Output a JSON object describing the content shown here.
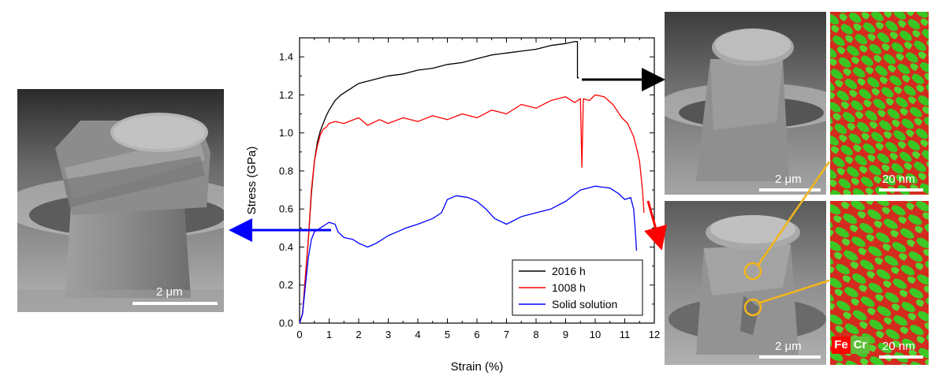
{
  "chart_data": {
    "type": "line",
    "title": "",
    "xlabel": "Strain (%)",
    "ylabel": "Stress (GPa)",
    "xlim": [
      0,
      12
    ],
    "ylim": [
      0,
      1.5
    ],
    "xticks": [
      0,
      1,
      2,
      3,
      4,
      5,
      6,
      7,
      8,
      9,
      10,
      11,
      12
    ],
    "yticks": [
      0.0,
      0.2,
      0.4,
      0.6,
      0.8,
      1.0,
      1.2,
      1.4
    ],
    "xtick_labels": [
      "0",
      "1",
      "2",
      "3",
      "4",
      "5",
      "6",
      "7",
      "8",
      "9",
      "10",
      "11",
      "12"
    ],
    "ytick_labels": [
      "0.0",
      "0.2",
      "0.4",
      "0.6",
      "0.8",
      "1.0",
      "1.2",
      "1.4"
    ],
    "grid": false,
    "legend_position": "bottom-right",
    "series": [
      {
        "name": "2016 h",
        "color": "#000000",
        "x": [
          0,
          0.1,
          0.2,
          0.3,
          0.4,
          0.5,
          0.6,
          0.7,
          0.8,
          0.9,
          1.0,
          1.2,
          1.4,
          1.6,
          1.8,
          2.0,
          2.5,
          3.0,
          3.5,
          4.0,
          4.5,
          5.0,
          5.5,
          6.0,
          6.5,
          7.0,
          7.5,
          8.0,
          8.5,
          9.0,
          9.3,
          9.4,
          9.4,
          9.45
        ],
        "y": [
          0,
          0.05,
          0.25,
          0.45,
          0.68,
          0.85,
          0.95,
          1.01,
          1.05,
          1.09,
          1.12,
          1.17,
          1.2,
          1.22,
          1.24,
          1.26,
          1.28,
          1.3,
          1.31,
          1.33,
          1.34,
          1.36,
          1.37,
          1.39,
          1.41,
          1.42,
          1.43,
          1.44,
          1.46,
          1.47,
          1.48,
          1.48,
          1.29,
          1.29
        ]
      },
      {
        "name": "1008 h",
        "color": "#ff0000",
        "x": [
          0,
          0.1,
          0.2,
          0.3,
          0.4,
          0.5,
          0.6,
          0.7,
          0.8,
          0.9,
          1.0,
          1.2,
          1.5,
          2.0,
          2.3,
          2.7,
          3.0,
          3.5,
          4.0,
          4.5,
          5.0,
          5.5,
          6.0,
          6.5,
          7.0,
          7.5,
          8.0,
          8.5,
          9.0,
          9.3,
          9.5,
          9.55,
          9.6,
          9.8,
          10.0,
          10.3,
          10.6,
          10.9,
          11.1,
          11.3,
          11.4,
          11.5,
          11.6,
          11.65
        ],
        "y": [
          0,
          0.05,
          0.25,
          0.45,
          0.7,
          0.85,
          0.93,
          0.99,
          1.02,
          1.03,
          1.05,
          1.06,
          1.05,
          1.08,
          1.04,
          1.07,
          1.05,
          1.08,
          1.06,
          1.09,
          1.07,
          1.1,
          1.08,
          1.12,
          1.1,
          1.15,
          1.13,
          1.17,
          1.19,
          1.16,
          1.18,
          0.82,
          1.18,
          1.17,
          1.2,
          1.19,
          1.15,
          1.08,
          1.05,
          0.98,
          0.92,
          0.85,
          0.7,
          0.58
        ]
      },
      {
        "name": "Solid solution",
        "color": "#0000ff",
        "x": [
          0,
          0.1,
          0.2,
          0.3,
          0.4,
          0.5,
          0.7,
          0.9,
          1.0,
          1.2,
          1.3,
          1.5,
          1.8,
          2.0,
          2.3,
          2.6,
          3.0,
          3.3,
          3.6,
          4.0,
          4.5,
          4.8,
          5.0,
          5.3,
          5.7,
          6.0,
          6.3,
          6.6,
          7.0,
          7.5,
          8.0,
          8.5,
          9.0,
          9.5,
          10.0,
          10.5,
          10.8,
          11.0,
          11.2,
          11.3,
          11.35,
          11.4
        ],
        "y": [
          0,
          0.05,
          0.2,
          0.35,
          0.44,
          0.48,
          0.5,
          0.52,
          0.53,
          0.52,
          0.48,
          0.45,
          0.44,
          0.42,
          0.4,
          0.42,
          0.46,
          0.48,
          0.5,
          0.52,
          0.55,
          0.58,
          0.65,
          0.67,
          0.66,
          0.64,
          0.6,
          0.55,
          0.52,
          0.56,
          0.58,
          0.6,
          0.64,
          0.7,
          0.72,
          0.71,
          0.68,
          0.65,
          0.66,
          0.6,
          0.5,
          0.38
        ]
      }
    ]
  },
  "images": {
    "left_sem": {
      "scale_label": "2 μm"
    },
    "right_top_sem": {
      "scale_label": "2 μm"
    },
    "right_top_eds": {
      "scale_label": "20 nm"
    },
    "right_bottom_sem": {
      "scale_label": "2 μm"
    },
    "right_bottom_eds": {
      "scale_label": "20 nm",
      "fe_label": "Fe",
      "cr_label": "Cr"
    }
  },
  "colors": {
    "sem_gray": "#8d8d8d",
    "eds_red": "#e0261e",
    "eds_green": "#39c623",
    "callout_yellow": "#f2b51a"
  }
}
